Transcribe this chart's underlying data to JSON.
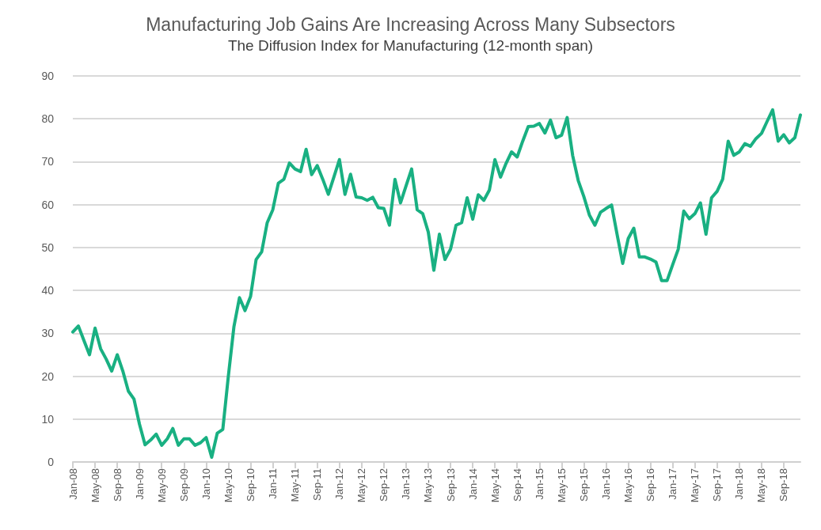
{
  "chart_data": {
    "type": "line",
    "title": "Manufacturing Job Gains Are Increasing Across Many Subsectors",
    "subtitle": "The Diffusion Index for Manufacturing (12-month span)",
    "categories": [
      "Jan-08",
      null,
      null,
      null,
      "May-08",
      null,
      null,
      null,
      "Sep-08",
      null,
      null,
      null,
      "Jan-09",
      null,
      null,
      null,
      "May-09",
      null,
      null,
      null,
      "Sep-09",
      null,
      null,
      null,
      "Jan-10",
      null,
      null,
      null,
      "May-10",
      null,
      null,
      null,
      "Sep-10",
      null,
      null,
      null,
      "Jan-11",
      null,
      null,
      null,
      "May-11",
      null,
      null,
      null,
      "Sep-11",
      null,
      null,
      null,
      "Jan-12",
      null,
      null,
      null,
      "May-12",
      null,
      null,
      null,
      "Sep-12",
      null,
      null,
      null,
      "Jan-13",
      null,
      null,
      null,
      "May-13",
      null,
      null,
      null,
      "Sep-13",
      null,
      null,
      null,
      "Jan-14",
      null,
      null,
      null,
      "May-14",
      null,
      null,
      null,
      "Sep-14",
      null,
      null,
      null,
      "Jan-15",
      null,
      null,
      null,
      "May-15",
      null,
      null,
      null,
      "Sep-15",
      null,
      null,
      null,
      "Jan-16",
      null,
      null,
      null,
      "May-16",
      null,
      null,
      null,
      "Sep-16",
      null,
      null,
      null,
      "Jan-17",
      null,
      null,
      null,
      "May-17",
      null,
      null,
      null,
      "Sep-17",
      null,
      null,
      null,
      "Jan-18",
      null,
      null,
      null,
      "May-18",
      null,
      null,
      null,
      "Sep-18",
      null,
      null,
      null
    ],
    "series": [
      {
        "color": "#19b082",
        "values": [
          30.3,
          31.7,
          28.3,
          25,
          31.2,
          26.4,
          24,
          21.2,
          25,
          21.2,
          16.5,
          14.7,
          8.8,
          4,
          5.1,
          6.5,
          3.9,
          5.4,
          7.8,
          3.9,
          5.4,
          5.4,
          3.9,
          4.5,
          5.7,
          1.1,
          6.7,
          7.6,
          20,
          31.5,
          38.3,
          35.3,
          38.6,
          47.2,
          49,
          55.8,
          58.8,
          65,
          65.9,
          69.7,
          68.3,
          67.7,
          72.9,
          67,
          69.1,
          65.9,
          62.4,
          66.4,
          70.5,
          62.4,
          67.1,
          61.8,
          61.6,
          61,
          61.7,
          59.3,
          59.1,
          55.2,
          65.9,
          60.4,
          64.4,
          68.3,
          58.8,
          57.9,
          53.6,
          44.7,
          53.1,
          47.2,
          49.6,
          55.2,
          55.8,
          61.6,
          56.6,
          62.3,
          61,
          63.4,
          70.5,
          66.4,
          69.6,
          72.3,
          71.1,
          74.8,
          78.2,
          78.3,
          78.9,
          76.7,
          79.7,
          75.6,
          76.2,
          80.3,
          71.4,
          65.6,
          61.9,
          57.6,
          55.2,
          58.2,
          59.1,
          59.9,
          53,
          46.3,
          52.1,
          54.5,
          47.8,
          47.8,
          47.3,
          46.6,
          42.3,
          42.3,
          46,
          49.6,
          58.5,
          56.7,
          57.9,
          60.4,
          53.1,
          61.6,
          63.1,
          65.9,
          74.8,
          71.5,
          72.3,
          74.2,
          73.6,
          75.4,
          76.6,
          79.4,
          82.1,
          74.8,
          76.3,
          74.4,
          75.6,
          80.9
        ]
      }
    ],
    "ylim": [
      0,
      90
    ],
    "yticks": [
      0,
      10,
      20,
      30,
      40,
      50,
      60,
      70,
      80,
      90
    ],
    "grid": "y",
    "marker": "none",
    "line_style": "solid"
  }
}
